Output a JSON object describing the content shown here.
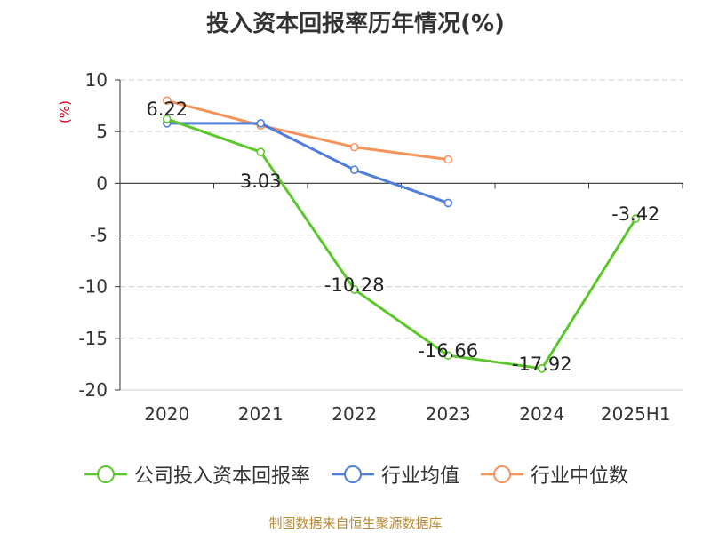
{
  "chart_data": {
    "type": "line",
    "title": "投入资本回报率历年情况(%)",
    "ylabel": "(%)",
    "categories": [
      "2020",
      "2021",
      "2022",
      "2023",
      "2024",
      "2025H1"
    ],
    "ylim": [
      -20,
      10
    ],
    "yticks": [
      10,
      5,
      0,
      -5,
      -10,
      -15,
      -20
    ],
    "grid": true,
    "legend_position": "bottom",
    "series": [
      {
        "name": "公司投入资本回报率",
        "color": "#5cc72a",
        "values": [
          6.22,
          3.03,
          -10.28,
          -16.66,
          -17.92,
          -3.42
        ],
        "labels": [
          "6.22",
          "3.03",
          "-10.28",
          "-16.66",
          "-17.92",
          "-3.42"
        ]
      },
      {
        "name": "行业均值",
        "color": "#4e7fd9",
        "values": [
          5.8,
          5.8,
          1.3,
          -1.9,
          null,
          null
        ]
      },
      {
        "name": "行业中位数",
        "color": "#f7925a",
        "values": [
          8.0,
          5.6,
          3.5,
          2.3,
          null,
          null
        ]
      }
    ]
  },
  "source_note": "制图数据来自恒生聚源数据库"
}
